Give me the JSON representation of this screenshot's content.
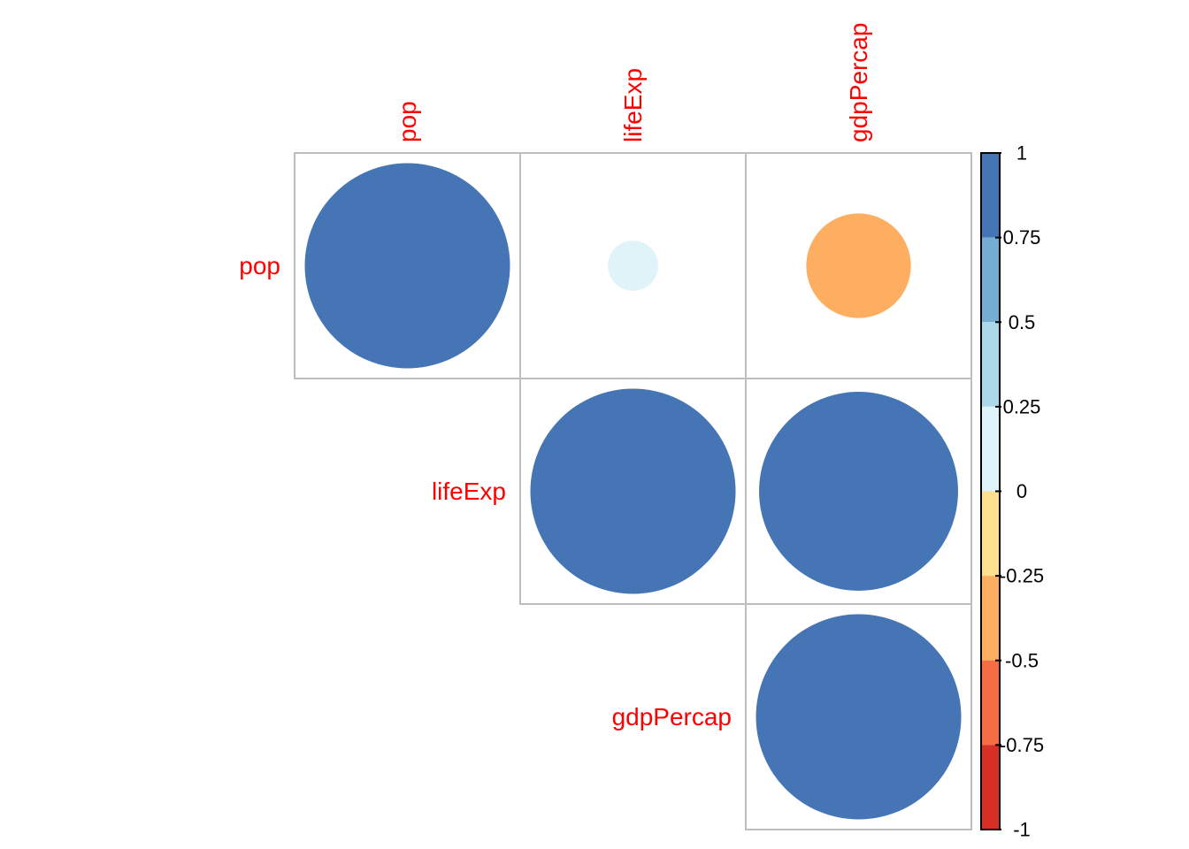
{
  "chart_data": {
    "type": "heatmap",
    "subtype": "correlation-circle-upper",
    "variables": [
      "pop",
      "lifeExp",
      "gdpPercap"
    ],
    "matrix": [
      [
        1.0,
        0.06,
        -0.26
      ],
      [
        null,
        1.0,
        0.94
      ],
      [
        null,
        null,
        1.0
      ]
    ],
    "value_range": [
      -1,
      1
    ],
    "legend": {
      "position": "right",
      "ticks": [
        1,
        0.75,
        0.5,
        0.25,
        0,
        -0.25,
        -0.5,
        -0.75,
        -1
      ],
      "tick_labels": [
        "1",
        "0.75",
        "0.5",
        "0.25",
        "0",
        "-0.25",
        "-0.5",
        "-0.75",
        "-1"
      ],
      "bands": [
        {
          "from": 0.75,
          "to": 1.0,
          "color": "#4575b4"
        },
        {
          "from": 0.5,
          "to": 0.75,
          "color": "#74add1"
        },
        {
          "from": 0.25,
          "to": 0.5,
          "color": "#abd9e9"
        },
        {
          "from": 0.0,
          "to": 0.25,
          "color": "#e0f3f8"
        },
        {
          "from": -0.25,
          "to": 0.0,
          "color": "#fee090"
        },
        {
          "from": -0.5,
          "to": -0.25,
          "color": "#fdae61"
        },
        {
          "from": -0.75,
          "to": -0.5,
          "color": "#f46d43"
        },
        {
          "from": -1.0,
          "to": -0.75,
          "color": "#d73027"
        }
      ]
    },
    "label_color": "#ff0000",
    "grid_color": "#bebebe"
  }
}
